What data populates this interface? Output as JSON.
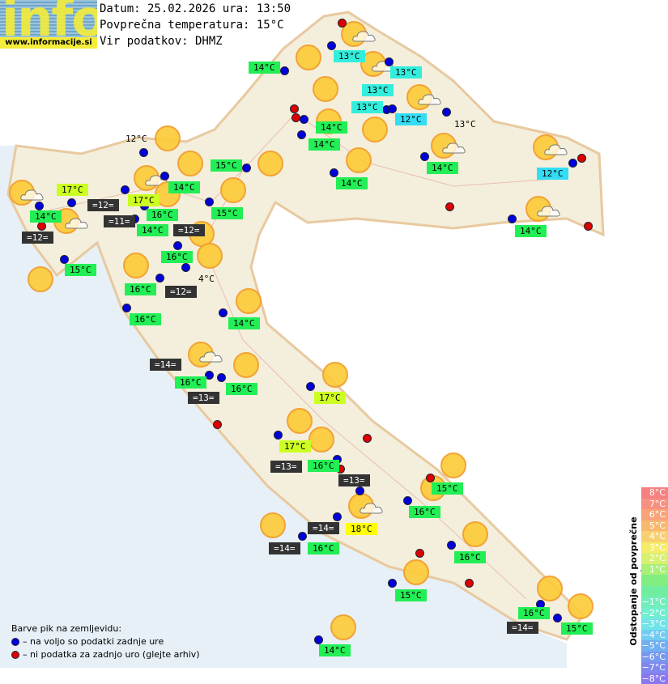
{
  "logo": {
    "word": "info",
    "url": "www.informacije.si"
  },
  "header": {
    "date_line": "Datum: 25.02.2026 ura: 13:50",
    "avg_temp_line": "Povprečna temperatura: 15°C",
    "source_line": "Vir podatkov: DHMZ"
  },
  "colors": {
    "above_avg_green": "#22ee55",
    "yellow_green": "#ccff22",
    "cyan": "#33eedd",
    "yellow": "#ffff00",
    "no_data": "#333333",
    "dot_available": "#0000dd",
    "dot_missing": "#dd0000"
  },
  "stations": [
    {
      "text": "14°C",
      "kind": "g"
    },
    {
      "text": "13°C",
      "kind": "c"
    },
    {
      "text": "13°C",
      "kind": "c"
    },
    {
      "text": "13°C",
      "kind": "c"
    },
    {
      "text": "13°C",
      "kind": "c"
    },
    {
      "text": "12°C",
      "kind": "c2"
    },
    {
      "text": "13°C",
      "kind": "p"
    },
    {
      "text": "14°C",
      "kind": "g"
    },
    {
      "text": "14°C",
      "kind": "g"
    },
    {
      "text": "12°C",
      "kind": "p"
    },
    {
      "text": "15°C",
      "kind": "g"
    },
    {
      "text": "14°C",
      "kind": "g"
    },
    {
      "text": "14°C",
      "kind": "g"
    },
    {
      "text": "14°C",
      "kind": "g"
    },
    {
      "text": "12°C",
      "kind": "c2"
    },
    {
      "text": "17°C",
      "kind": "yg"
    },
    {
      "text": "17°C",
      "kind": "yg"
    },
    {
      "text": "=12=",
      "kind": "d"
    },
    {
      "text": "14°C",
      "kind": "g"
    },
    {
      "text": "15°C",
      "kind": "g"
    },
    {
      "text": "16°C",
      "kind": "g"
    },
    {
      "text": "=11=",
      "kind": "d"
    },
    {
      "text": "14°C",
      "kind": "g"
    },
    {
      "text": "=12=",
      "kind": "d"
    },
    {
      "text": "=12=",
      "kind": "d"
    },
    {
      "text": "14°C",
      "kind": "g"
    },
    {
      "text": "15°C",
      "kind": "g"
    },
    {
      "text": "16°C",
      "kind": "g"
    },
    {
      "text": "4°C",
      "kind": "p"
    },
    {
      "text": "16°C",
      "kind": "g"
    },
    {
      "text": "=12=",
      "kind": "d"
    },
    {
      "text": "16°C",
      "kind": "g"
    },
    {
      "text": "14°C",
      "kind": "g"
    },
    {
      "text": "=14=",
      "kind": "d"
    },
    {
      "text": "16°C",
      "kind": "g"
    },
    {
      "text": "16°C",
      "kind": "g"
    },
    {
      "text": "=13=",
      "kind": "d"
    },
    {
      "text": "17°C",
      "kind": "yg"
    },
    {
      "text": "17°C",
      "kind": "yg"
    },
    {
      "text": "=13=",
      "kind": "d"
    },
    {
      "text": "16°C",
      "kind": "g"
    },
    {
      "text": "=13=",
      "kind": "d"
    },
    {
      "text": "15°C",
      "kind": "g"
    },
    {
      "text": "16°C",
      "kind": "g"
    },
    {
      "text": "18°C",
      "kind": "y"
    },
    {
      "text": "=14=",
      "kind": "d"
    },
    {
      "text": "=14=",
      "kind": "d"
    },
    {
      "text": "16°C",
      "kind": "g"
    },
    {
      "text": "16°C",
      "kind": "g"
    },
    {
      "text": "15°C",
      "kind": "g"
    },
    {
      "text": "16°C",
      "kind": "g"
    },
    {
      "text": "=14=",
      "kind": "d"
    },
    {
      "text": "15°C",
      "kind": "g"
    },
    {
      "text": "14°C",
      "kind": "g"
    }
  ],
  "deviation_scale": {
    "title": "Odstopanje od povprečne temperature:",
    "steps": [
      {
        "label": "8°C",
        "color": "#f58080"
      },
      {
        "label": "7°C",
        "color": "#f79080"
      },
      {
        "label": "6°C",
        "color": "#f9a478"
      },
      {
        "label": "5°C",
        "color": "#f9b870"
      },
      {
        "label": "4°C",
        "color": "#f9d070"
      },
      {
        "label": "3°C",
        "color": "#f5ec6a"
      },
      {
        "label": "2°C",
        "color": "#d8f070"
      },
      {
        "label": "1°C",
        "color": "#a8f078"
      },
      {
        "label": "",
        "color": "#80ee80"
      },
      {
        "label": "",
        "color": "#70eea0"
      },
      {
        "label": "−1°C",
        "color": "#70eebb"
      },
      {
        "label": "−2°C",
        "color": "#70eed0"
      },
      {
        "label": "−3°C",
        "color": "#70e4e8"
      },
      {
        "label": "−4°C",
        "color": "#70ccf0"
      },
      {
        "label": "−5°C",
        "color": "#70b0f0"
      },
      {
        "label": "−6°C",
        "color": "#7898f0"
      },
      {
        "label": "−7°C",
        "color": "#8088f0"
      },
      {
        "label": "−8°C",
        "color": "#8878f0"
      }
    ]
  },
  "legend": {
    "title": "Barve pik na zemljevidu:",
    "available": "– na voljo so podatki zadnje ure",
    "missing": "– ni podatka za zadnjo uro (glejte arhiv)"
  }
}
